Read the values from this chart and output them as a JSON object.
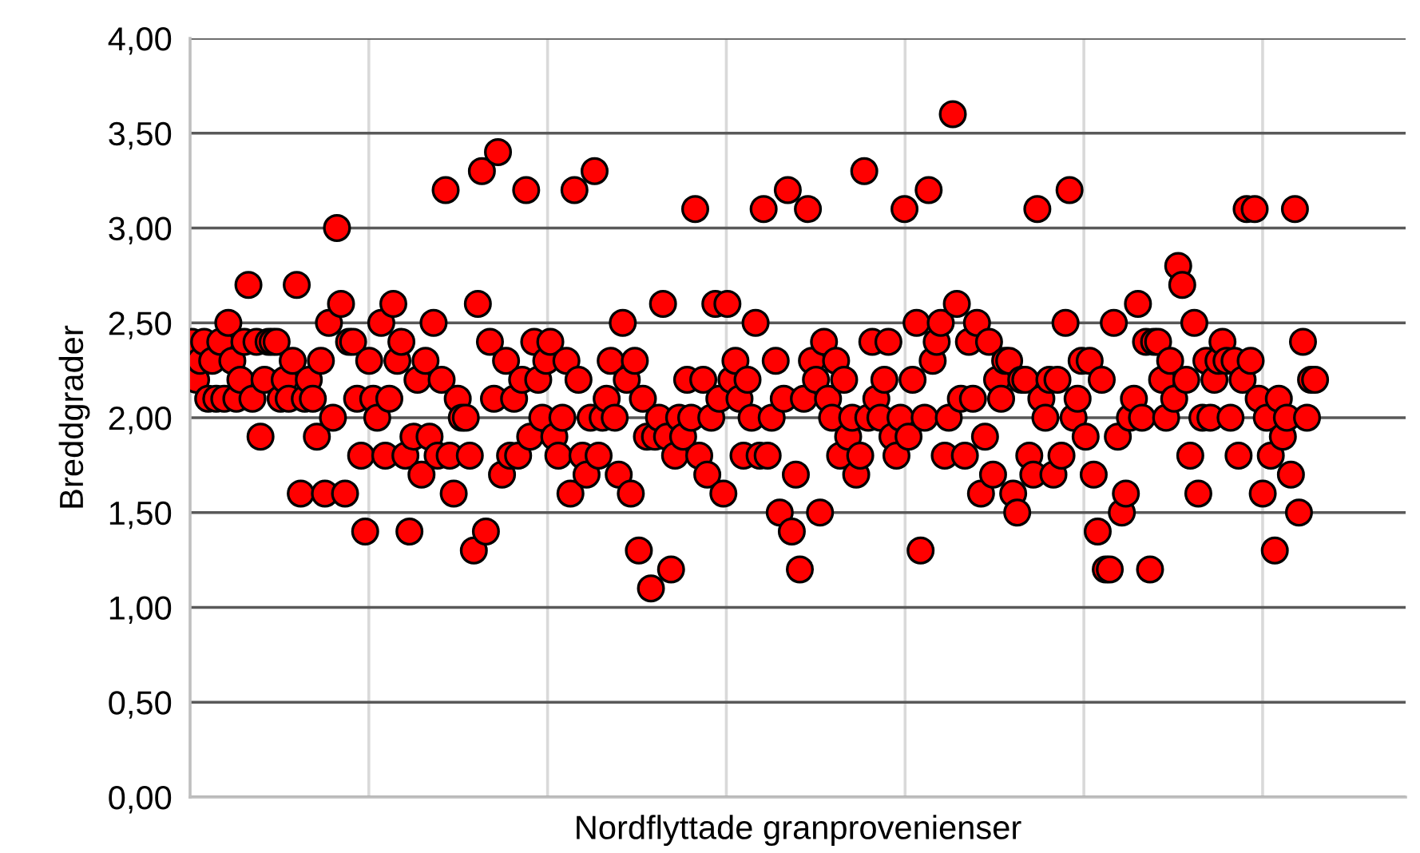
{
  "chart_data": {
    "type": "scatter",
    "xlabel": "Nordflyttade granprovenienser",
    "ylabel": "Breddgrader",
    "categories": [
      null,
      null,
      null,
      null,
      null,
      null,
      null,
      null,
      null,
      null,
      null,
      null,
      null,
      null,
      null,
      null,
      null,
      null,
      null,
      null,
      null,
      null,
      null,
      null,
      null,
      null,
      null,
      null,
      null,
      null,
      null,
      null,
      null,
      null,
      null,
      null,
      null,
      null,
      null,
      null,
      null,
      null,
      null,
      null,
      null,
      null,
      null,
      null,
      null,
      null,
      null,
      null,
      null,
      null,
      null,
      null,
      null,
      null,
      null,
      null,
      null,
      null,
      null,
      null,
      null,
      null,
      null,
      null,
      null,
      null,
      null,
      null,
      null,
      null,
      null,
      null,
      null,
      null,
      null,
      null,
      null,
      null,
      null,
      null,
      null,
      null,
      null,
      null,
      null,
      null,
      null,
      null,
      null,
      null,
      null,
      null,
      null,
      null,
      null,
      null,
      null,
      null,
      null,
      null,
      null,
      null,
      null,
      null,
      null,
      null,
      null,
      null,
      null,
      null,
      null,
      null,
      null,
      null,
      null,
      null,
      null,
      null,
      null,
      null,
      null,
      null,
      null,
      null,
      null,
      null,
      null,
      null,
      null,
      null,
      null,
      null,
      null,
      null,
      null,
      null,
      null,
      null,
      null,
      null,
      null,
      null,
      null,
      null,
      null,
      null,
      null,
      null,
      null,
      null,
      null,
      null,
      null,
      null,
      null,
      null,
      null,
      null,
      null,
      null,
      null,
      null,
      null,
      null,
      null,
      null,
      null,
      null,
      null,
      null,
      null,
      null,
      null,
      null,
      null,
      null,
      null,
      null,
      null,
      null,
      null,
      null,
      null,
      null,
      null,
      null,
      null,
      null,
      null,
      null,
      null,
      null,
      null,
      null,
      null,
      null,
      null,
      null,
      null,
      null,
      null,
      null,
      null,
      null,
      null,
      null,
      null,
      null,
      null,
      null,
      null,
      null,
      null,
      null,
      null,
      null,
      null,
      null,
      null,
      null,
      null,
      null,
      null,
      null,
      null,
      null,
      null,
      null,
      null,
      null,
      null,
      null,
      null,
      null,
      null,
      null,
      null,
      null,
      null,
      null,
      null,
      null,
      null,
      null,
      null,
      null,
      null,
      null,
      null,
      null,
      null,
      null,
      null,
      null,
      null,
      null,
      null,
      null,
      null,
      null,
      null,
      null,
      null,
      null,
      null,
      null,
      null,
      null,
      null,
      null,
      null,
      null,
      null,
      null,
      null,
      null,
      null,
      null,
      null,
      null,
      null,
      null,
      null,
      null,
      null,
      null,
      null,
      null,
      null,
      null,
      null,
      null,
      null,
      null,
      null,
      null,
      null,
      null
    ],
    "ylim": [
      0,
      4
    ],
    "yticks": [
      {
        "value": 0,
        "label": "0,00"
      },
      {
        "value": 0.5,
        "label": "0,50"
      },
      {
        "value": 1,
        "label": "1,00"
      },
      {
        "value": 1.5,
        "label": "1,50"
      },
      {
        "value": 2,
        "label": "2,00"
      },
      {
        "value": 2.5,
        "label": "2,50"
      },
      {
        "value": 3,
        "label": "3,00"
      },
      {
        "value": 3.5,
        "label": "3,50"
      },
      {
        "value": 4,
        "label": "4,00"
      }
    ],
    "tick_labels": "y",
    "grid": true,
    "marker": "circle",
    "series": [
      {
        "color": "#ff0000",
        "values": [
          2.4,
          2.2,
          2.3,
          2.4,
          2.1,
          2.3,
          2.1,
          2.4,
          2.1,
          2.5,
          2.3,
          2.1,
          2.2,
          2.4,
          2.7,
          2.1,
          2.4,
          1.9,
          2.2,
          2.4,
          2.4,
          2.4,
          2.1,
          2.2,
          2.1,
          2.3,
          2.7,
          1.6,
          2.1,
          2.2,
          2.1,
          1.9,
          2.3,
          1.6,
          2.5,
          2.0,
          3.0,
          2.6,
          1.6,
          2.4,
          2.4,
          2.1,
          1.8,
          1.4,
          2.3,
          2.1,
          2.0,
          2.5,
          1.8,
          2.1,
          2.6,
          2.3,
          2.4,
          1.8,
          1.4,
          1.9,
          2.2,
          1.7,
          2.3,
          1.9,
          2.5,
          1.8,
          2.2,
          3.2,
          1.8,
          1.6,
          2.1,
          2.0,
          2.0,
          1.8,
          1.3,
          2.6,
          3.3,
          1.4,
          2.4,
          2.1,
          3.4,
          1.7,
          2.3,
          1.8,
          2.1,
          1.8,
          2.2,
          3.2,
          1.9,
          2.4,
          2.2,
          2.0,
          2.3,
          2.4,
          1.9,
          1.8,
          2.0,
          2.3,
          1.6,
          3.2,
          2.2,
          1.8,
          1.7,
          2.0,
          3.3,
          1.8,
          2.0,
          2.1,
          2.3,
          2.0,
          1.7,
          2.5,
          2.2,
          1.6,
          2.3,
          1.3,
          2.1,
          1.9,
          1.1,
          1.9,
          2.0,
          2.6,
          1.9,
          1.2,
          1.8,
          2.0,
          1.9,
          2.2,
          2.0,
          3.1,
          1.8,
          2.2,
          1.7,
          2.0,
          2.6,
          2.1,
          1.6,
          2.6,
          2.2,
          2.3,
          2.1,
          1.8,
          2.2,
          2.0,
          2.5,
          1.8,
          3.1,
          1.8,
          2.0,
          2.3,
          1.5,
          2.1,
          3.2,
          1.4,
          1.7,
          1.2,
          2.1,
          3.1,
          2.3,
          2.2,
          1.5,
          2.4,
          2.1,
          2.0,
          2.3,
          1.8,
          2.2,
          1.9,
          2.0,
          1.7,
          1.8,
          3.3,
          2.0,
          2.4,
          2.1,
          2.0,
          2.2,
          2.4,
          1.9,
          1.8,
          2.0,
          3.1,
          1.9,
          2.2,
          2.5,
          1.3,
          2.0,
          3.2,
          2.3,
          2.4,
          2.5,
          1.8,
          2.0,
          3.6,
          2.6,
          2.1,
          1.8,
          2.4,
          2.1,
          2.5,
          1.6,
          1.9,
          2.4,
          1.7,
          2.2,
          2.1,
          2.3,
          2.3,
          1.6,
          1.5,
          2.2,
          2.2,
          1.8,
          1.7,
          3.1,
          2.1,
          2.0,
          2.2,
          1.7,
          2.2,
          1.8,
          2.5,
          3.2,
          2.0,
          2.1,
          2.3,
          1.9,
          2.3,
          1.7,
          1.4,
          2.2,
          1.2,
          1.2,
          2.5,
          1.9,
          1.5,
          1.6,
          2.0,
          2.1,
          2.6,
          2.0,
          2.4,
          1.2,
          2.4,
          2.4,
          2.2,
          2.0,
          2.3,
          2.1,
          2.8,
          2.7,
          2.2,
          1.8,
          2.5,
          1.6,
          2.0,
          2.3,
          2.0,
          2.2,
          2.3,
          2.4,
          2.3,
          2.0,
          2.3,
          1.8,
          2.2,
          3.1,
          2.3,
          3.1,
          2.1,
          1.6,
          2.0,
          1.8,
          1.3,
          2.1,
          1.9,
          2.0,
          1.7,
          3.1,
          1.5,
          2.4,
          2.0,
          2.2,
          2.2,
          null,
          null,
          null,
          null,
          null,
          null,
          null,
          null,
          null,
          null,
          null,
          null,
          null,
          null,
          null,
          null,
          null,
          null,
          null,
          null,
          null,
          null
        ]
      }
    ]
  }
}
